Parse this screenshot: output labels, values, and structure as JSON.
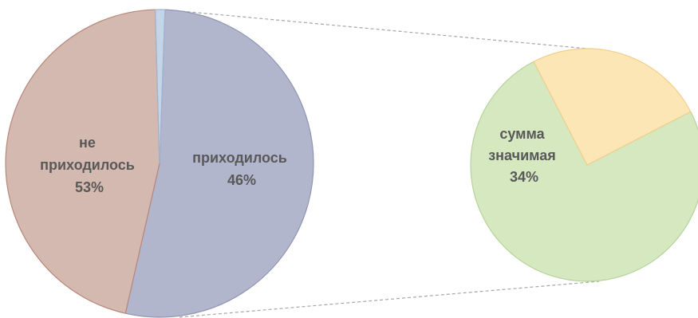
{
  "chart_data": {
    "type": "pie",
    "title": "",
    "legend": "none",
    "main_pie": {
      "slices": [
        {
          "label_lines": [
            "не",
            "приходилось"
          ],
          "percent_label": "53%",
          "value": 53,
          "color": "#b2b6cc",
          "stroke": "#8f94b2"
        },
        {
          "label_lines": [
            "приходилось"
          ],
          "percent_label": "46%",
          "value": 46,
          "color": "#d4b9b0",
          "stroke": "#b8877a"
        },
        {
          "label_lines": [],
          "percent_label": "",
          "value": 1,
          "color": "#c5d5e8",
          "stroke": "#9fb4cf"
        }
      ]
    },
    "detail_pie": {
      "slices": [
        {
          "label_lines": [
            "сумма",
            "значимая"
          ],
          "percent_label": "34%",
          "value": 75,
          "color": "#d5e8c0",
          "stroke": "#b5d39a"
        },
        {
          "label_lines": [],
          "percent_label": "",
          "value": 25,
          "color": "#fde6b6",
          "stroke": "#f2cf8a"
        }
      ]
    },
    "connector_color": "#a6a6a6"
  }
}
